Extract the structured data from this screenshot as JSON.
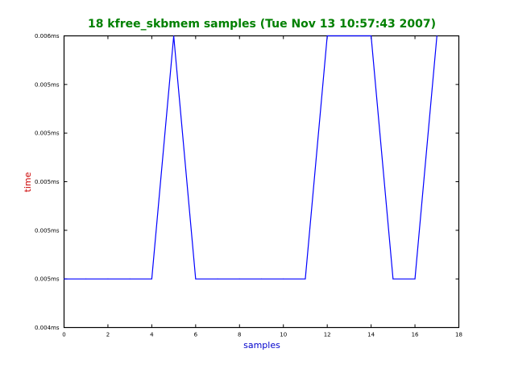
{
  "chart_data": {
    "type": "line",
    "title": "18 kfree_skbmem samples (Tue Nov 13 10:57:43 2007)",
    "xlabel": "samples",
    "ylabel": "time",
    "xlim": [
      0,
      18
    ],
    "ylim": [
      0.0044,
      0.0056
    ],
    "x_ticks": [
      0,
      2,
      4,
      6,
      8,
      10,
      12,
      14,
      16,
      18
    ],
    "x_tick_labels": [
      "0",
      "2",
      "4",
      "6",
      "8",
      "10",
      "12",
      "14",
      "16",
      "18"
    ],
    "y_ticks": [
      0.0044,
      0.0046,
      0.0048,
      0.005,
      0.0052,
      0.0054,
      0.0056
    ],
    "y_tick_labels": [
      "0.004ms",
      "0.005ms",
      "0.005ms",
      "0.005ms",
      "0.005ms",
      "0.005ms",
      "0.006ms"
    ],
    "grid": false,
    "legend": "none",
    "series": [
      {
        "x": [
          0,
          1,
          2,
          3,
          4,
          5,
          6,
          7,
          8,
          9,
          10,
          11,
          12,
          13,
          14,
          15,
          16,
          17
        ],
        "values": [
          0.0046,
          0.0046,
          0.0046,
          0.0046,
          0.0046,
          0.0056,
          0.0046,
          0.0046,
          0.0046,
          0.0046,
          0.0046,
          0.0046,
          0.0056,
          0.0056,
          0.0056,
          0.0046,
          0.0046,
          0.0056
        ],
        "color": "#0000ff"
      }
    ],
    "colors": {
      "title": "#008000",
      "xlabel": "#0000cc",
      "ylabel": "#cc0000",
      "axes": "#000000"
    }
  }
}
